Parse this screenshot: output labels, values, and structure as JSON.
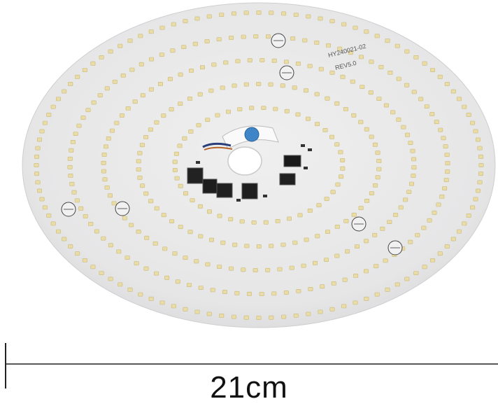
{
  "board": {
    "part_number": "HY240021-02",
    "revision": "REV5.0",
    "led_color": "#e9dca6",
    "board_color": "#e9e9ea"
  },
  "dimension": {
    "label": "21cm"
  }
}
